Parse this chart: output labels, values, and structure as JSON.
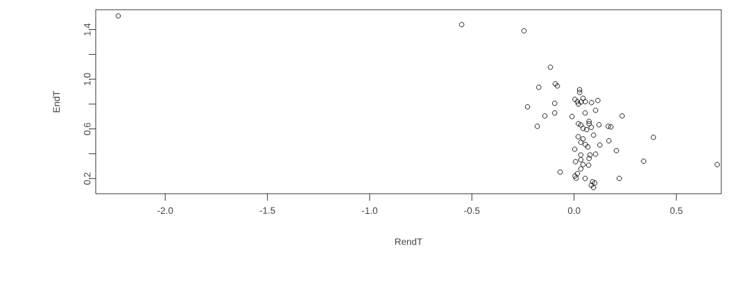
{
  "chart_data": {
    "type": "scatter",
    "xlabel": "RendT",
    "ylabel": "EndT",
    "marker": "circle",
    "xlim": [
      -2.34,
      0.72
    ],
    "ylim": [
      0.078,
      1.56
    ],
    "xticks": [
      {
        "value": -2.0,
        "label": "-2.0"
      },
      {
        "value": -1.5,
        "label": "-1.5"
      },
      {
        "value": -1.0,
        "label": "-1.0"
      },
      {
        "value": -0.5,
        "label": "-0.5"
      },
      {
        "value": 0.0,
        "label": "0.0"
      },
      {
        "value": 0.5,
        "label": "0.5"
      }
    ],
    "yticks": [
      {
        "value": 0.2,
        "label": "0.2"
      },
      {
        "value": 0.4,
        "label": null
      },
      {
        "value": 0.6,
        "label": "0.6"
      },
      {
        "value": 0.8,
        "label": null
      },
      {
        "value": 1.0,
        "label": "1.0"
      },
      {
        "value": 1.2,
        "label": null
      },
      {
        "value": 1.4,
        "label": "1.4"
      }
    ],
    "series": [
      {
        "color": "#000000",
        "x": [
          -2.23,
          -0.55,
          -0.245,
          -0.116,
          -0.173,
          -0.092,
          -0.082,
          0.027,
          0.027,
          0.004,
          0.044,
          0.021,
          0.055,
          0.016,
          0.034,
          0.116,
          0.085,
          -0.228,
          -0.095,
          -0.095,
          -0.143,
          -0.18,
          -0.01,
          0.054,
          0.105,
          0.235,
          0.033,
          0.073,
          0.061,
          0.044,
          0.084,
          0.073,
          0.021,
          0.122,
          0.167,
          0.18,
          0.095,
          0.02,
          0.044,
          0.033,
          0.055,
          0.067,
          0.388,
          0.17,
          0.126,
          0.003,
          0.207,
          0.105,
          0.033,
          0.078,
          0.033,
          0.073,
          0.34,
          0.007,
          0.044,
          0.071,
          -0.068,
          0.033,
          0.016,
          0.004,
          0.01,
          0.221,
          0.054,
          0.09,
          0.084,
          0.095,
          0.101,
          0.7
        ],
        "values": [
          1.51,
          1.44,
          1.39,
          1.097,
          0.935,
          0.963,
          0.946,
          0.916,
          0.894,
          0.838,
          0.847,
          0.8,
          0.819,
          0.819,
          0.817,
          0.829,
          0.812,
          0.778,
          0.806,
          0.728,
          0.705,
          0.621,
          0.7,
          0.728,
          0.75,
          0.705,
          0.632,
          0.642,
          0.595,
          0.604,
          0.613,
          0.661,
          0.642,
          0.633,
          0.621,
          0.616,
          0.55,
          0.537,
          0.52,
          0.492,
          0.474,
          0.455,
          0.532,
          0.504,
          0.47,
          0.436,
          0.425,
          0.397,
          0.39,
          0.39,
          0.352,
          0.362,
          0.34,
          0.336,
          0.313,
          0.308,
          0.252,
          0.278,
          0.24,
          0.221,
          0.203,
          0.201,
          0.201,
          0.175,
          0.147,
          0.128,
          0.165,
          0.313
        ]
      }
    ]
  }
}
